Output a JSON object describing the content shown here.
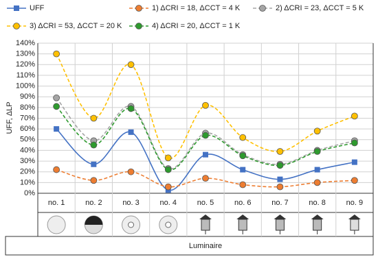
{
  "chart_data": {
    "type": "line",
    "y_label": "UFF, ΔLP",
    "x_label": "Luminaire",
    "categories": [
      "no. 1",
      "no. 2",
      "no. 3",
      "no. 4",
      "no. 5",
      "no. 6",
      "no. 7",
      "no. 8",
      "no. 9"
    ],
    "series": [
      {
        "name": "UFF",
        "color": "#4472c4",
        "marker": "square",
        "dashed": false,
        "values": [
          60,
          27,
          57,
          3,
          36,
          22,
          13,
          22,
          29
        ]
      },
      {
        "name": "1) ΔCRI = 18, ΔCCT = 4 K",
        "color": "#ed7d31",
        "marker": "circle",
        "dashed": true,
        "values": [
          22,
          12,
          20,
          6,
          14,
          8,
          6,
          10,
          12
        ]
      },
      {
        "name": "2) ΔCRI = 23, ΔCCT = 5 K",
        "color": "#a5a5a5",
        "marker": "circle",
        "dashed": true,
        "values": [
          89,
          49,
          81,
          23,
          56,
          36,
          27,
          40,
          49
        ]
      },
      {
        "name": "3) ΔCRI = 53, ΔCCT = 20 K",
        "color": "#ffc000",
        "marker": "circle",
        "dashed": true,
        "values": [
          130,
          70,
          120,
          33,
          82,
          52,
          39,
          58,
          72
        ]
      },
      {
        "name": "4) ΔCRI = 20, ΔCCT = 1 K",
        "color": "#2e9a2e",
        "marker": "circle",
        "dashed": true,
        "values": [
          81,
          45,
          79,
          22,
          54,
          35,
          26,
          39,
          47
        ]
      }
    ],
    "ylim": [
      0,
      140
    ],
    "yticks": [
      {
        "value": 0,
        "label": "0%"
      },
      {
        "value": 10,
        "label": "10%"
      },
      {
        "value": 20,
        "label": "20%"
      },
      {
        "value": 30,
        "label": "30%"
      },
      {
        "value": 40,
        "label": "40%"
      },
      {
        "value": 50,
        "label": "50%"
      },
      {
        "value": 60,
        "label": "60%"
      },
      {
        "value": 70,
        "label": "70%"
      },
      {
        "value": 80,
        "label": "80%"
      },
      {
        "value": 90,
        "label": "90%"
      },
      {
        "value": 100,
        "label": "100%"
      },
      {
        "value": 110,
        "label": "110%"
      },
      {
        "value": 120,
        "label": "120%"
      },
      {
        "value": 130,
        "label": "130%"
      },
      {
        "value": 140,
        "label": "140%"
      }
    ],
    "grid": true
  }
}
